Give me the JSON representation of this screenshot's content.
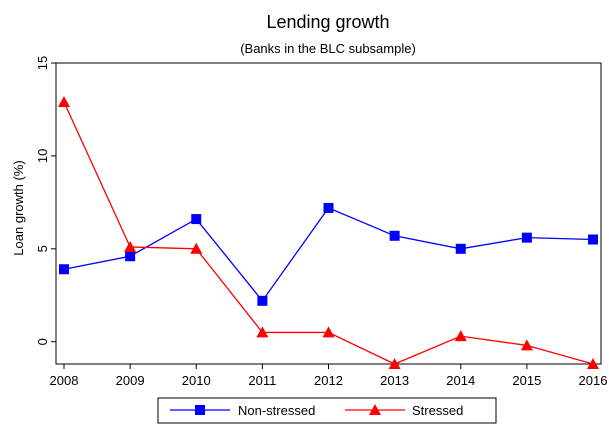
{
  "chart_data": {
    "type": "line",
    "title": "Lending growth",
    "subtitle": "(Banks in the BLC subsample)",
    "xlabel": "",
    "ylabel": "Loan growth (%)",
    "x": [
      2008,
      2009,
      2010,
      2011,
      2012,
      2013,
      2014,
      2015,
      2016
    ],
    "ylim": [
      -1.2,
      15
    ],
    "yticks": [
      0,
      5,
      10,
      15
    ],
    "grid": false,
    "legend_position": "bottom",
    "series": [
      {
        "name": "Non-stressed",
        "color": "#0000ff",
        "marker": "square",
        "values": [
          3.9,
          4.6,
          6.6,
          2.2,
          7.2,
          5.7,
          5.0,
          5.6,
          5.5
        ]
      },
      {
        "name": "Stressed",
        "color": "#ff0000",
        "marker": "triangle",
        "values": [
          12.9,
          5.1,
          5.0,
          0.5,
          0.5,
          -1.2,
          0.3,
          -0.2,
          -1.2
        ]
      }
    ]
  }
}
